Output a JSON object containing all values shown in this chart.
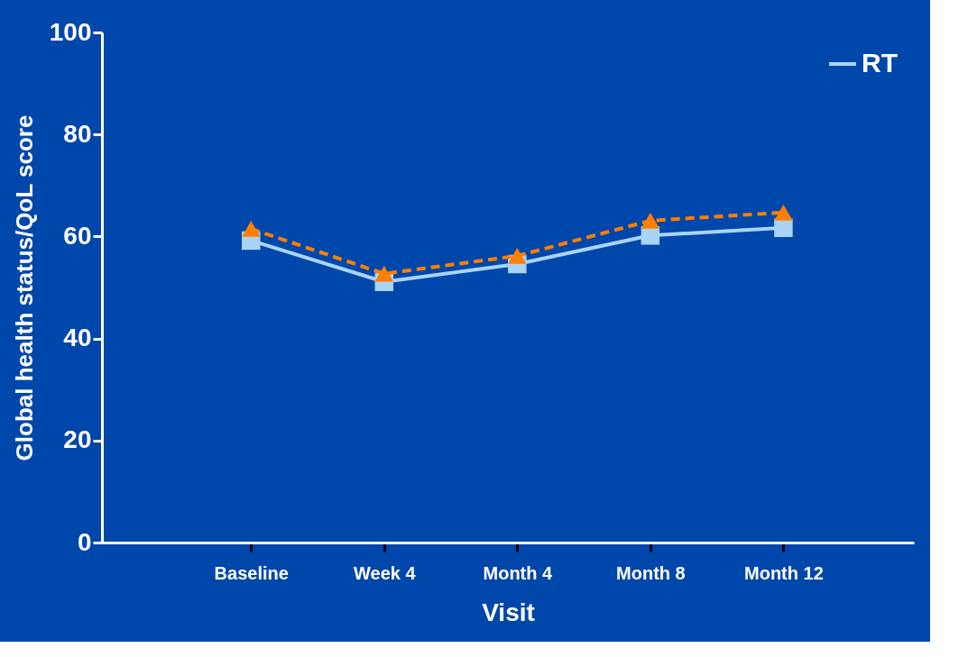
{
  "chart_data": {
    "type": "line",
    "xlabel": "Visit",
    "ylabel": "Global health status/QoL score",
    "categories": [
      "Baseline",
      "Week 4",
      "Month 4",
      "Month 8",
      "Month 12"
    ],
    "series": [
      {
        "name": "RT",
        "color": "#a9d4f5",
        "marker": "square",
        "line_style": "solid",
        "values": [
          59.2,
          51.1,
          54.6,
          60.2,
          61.7
        ]
      },
      {
        "color": "#ff7f00",
        "marker": "triangle",
        "line_style": "dashed",
        "values": [
          61.5,
          52.7,
          56.2,
          63.1,
          64.7
        ]
      }
    ],
    "ylim": [
      0,
      100
    ],
    "yticks": [
      0,
      20,
      40,
      60,
      80,
      100
    ],
    "grid": false,
    "legend": "top right"
  }
}
